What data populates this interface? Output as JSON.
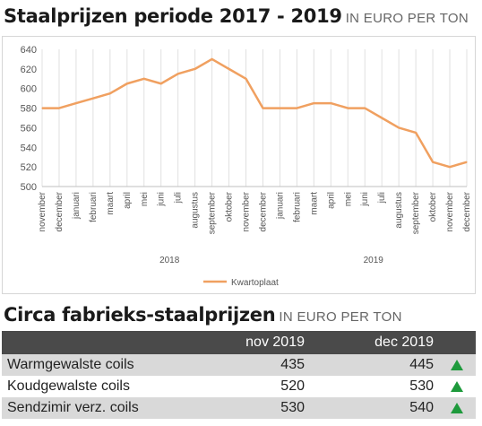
{
  "header": {
    "title": "Staalprijzen periode 2017 - 2019",
    "unit": "IN EURO PER TON"
  },
  "colors": {
    "line": "#f0a060",
    "grid": "#e0e0e0",
    "table_header": "#4a4a4a",
    "row_alt": "#d9d9d9",
    "arrow_up": "#1e9a3c"
  },
  "chart_data": {
    "type": "line",
    "categories": [
      "november",
      "december",
      "januari",
      "februari",
      "maart",
      "april",
      "mei",
      "juni",
      "juli",
      "augustus",
      "september",
      "oktober",
      "november",
      "december",
      "januari",
      "februari",
      "maart",
      "april",
      "mei",
      "juni",
      "juli",
      "augustus",
      "september",
      "oktober",
      "november",
      "december"
    ],
    "year_labels": [
      "2018",
      "2019"
    ],
    "series": [
      {
        "name": "Kwartoplaat",
        "values": [
          580,
          580,
          585,
          590,
          595,
          605,
          610,
          605,
          615,
          620,
          630,
          620,
          610,
          580,
          580,
          580,
          585,
          585,
          580,
          580,
          570,
          560,
          555,
          525,
          520,
          525
        ]
      }
    ],
    "y_ticks": [
      500,
      520,
      540,
      560,
      580,
      600,
      620,
      640
    ],
    "ylim": [
      500,
      640
    ],
    "grid": "vertical",
    "legend": "bottom"
  },
  "table": {
    "title": "Circa fabrieks-staalprijzen",
    "unit": "IN EURO PER TON",
    "columns": [
      "nov 2019",
      "dec 2019"
    ],
    "rows": [
      {
        "name": "Warmgewalste coils",
        "nov": "435",
        "dec": "445",
        "trend": "up-arrow-icon"
      },
      {
        "name": "Koudgewalste coils",
        "nov": "520",
        "dec": "530",
        "trend": "up-arrow-icon"
      },
      {
        "name": "Sendzimir verz. coils",
        "nov": "530",
        "dec": "540",
        "trend": "up-arrow-icon"
      }
    ]
  }
}
